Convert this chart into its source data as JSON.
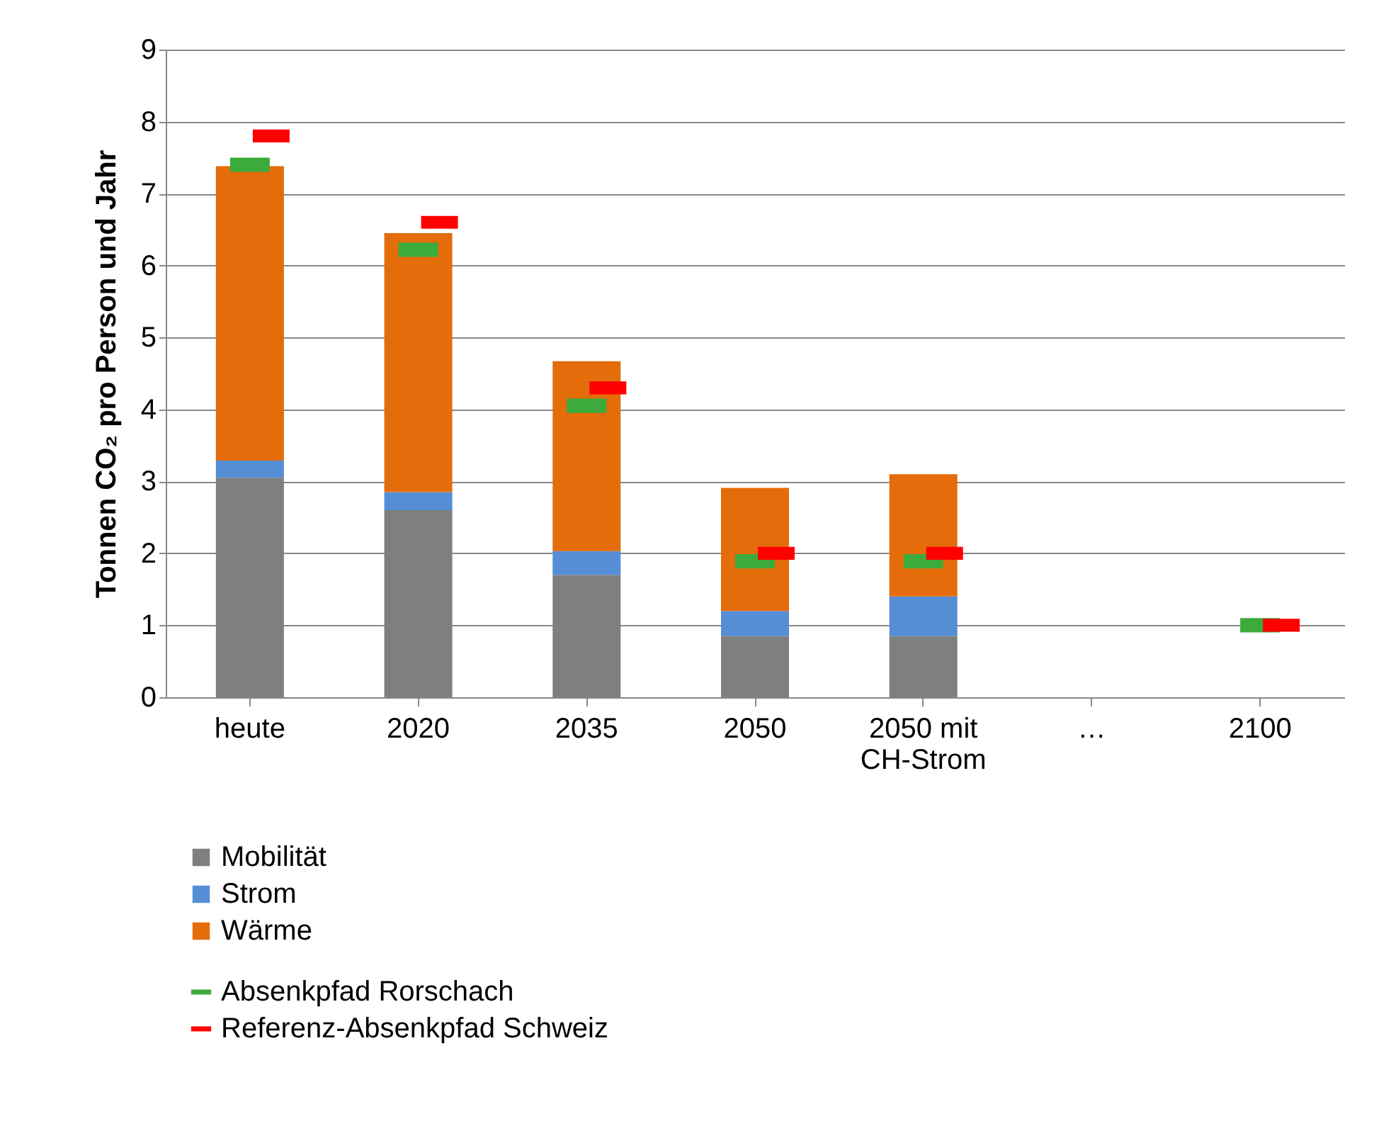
{
  "chart_data": {
    "type": "bar",
    "stacked": true,
    "ylabel": "Tonnen CO₂ pro Person und Jahr",
    "categories": [
      "heute",
      "2020",
      "2035",
      "2050",
      "2050 mit CH-Strom",
      "…",
      "2100"
    ],
    "ylim": [
      0,
      9
    ],
    "yticks": [
      0,
      1,
      2,
      3,
      4,
      5,
      6,
      7,
      8,
      9
    ],
    "grid": "y",
    "legend": "bottom",
    "series": [
      {
        "name": "Mobilität",
        "color": "#7f7f7f",
        "values": [
          3.05,
          2.6,
          1.7,
          0.85,
          0.85,
          null,
          null
        ]
      },
      {
        "name": "Strom",
        "color": "#558ed5",
        "values": [
          0.24,
          0.25,
          0.33,
          0.35,
          0.55,
          null,
          null
        ]
      },
      {
        "name": "Wärme",
        "color": "#e46c0a",
        "values": [
          4.09,
          3.6,
          2.64,
          1.71,
          1.7,
          null,
          null
        ]
      },
      {
        "name": "Absenkpfad Rorschach",
        "type": "scatter",
        "color": "#3cab3c",
        "values": [
          7.4,
          6.22,
          4.05,
          1.89,
          1.89,
          null,
          1.0
        ]
      },
      {
        "name": "Referenz-Absenkpfad Schweiz",
        "type": "scatter",
        "color": "#ff0000",
        "values": [
          7.8,
          6.6,
          4.3,
          2.0,
          2.0,
          null,
          1.0
        ]
      }
    ]
  }
}
